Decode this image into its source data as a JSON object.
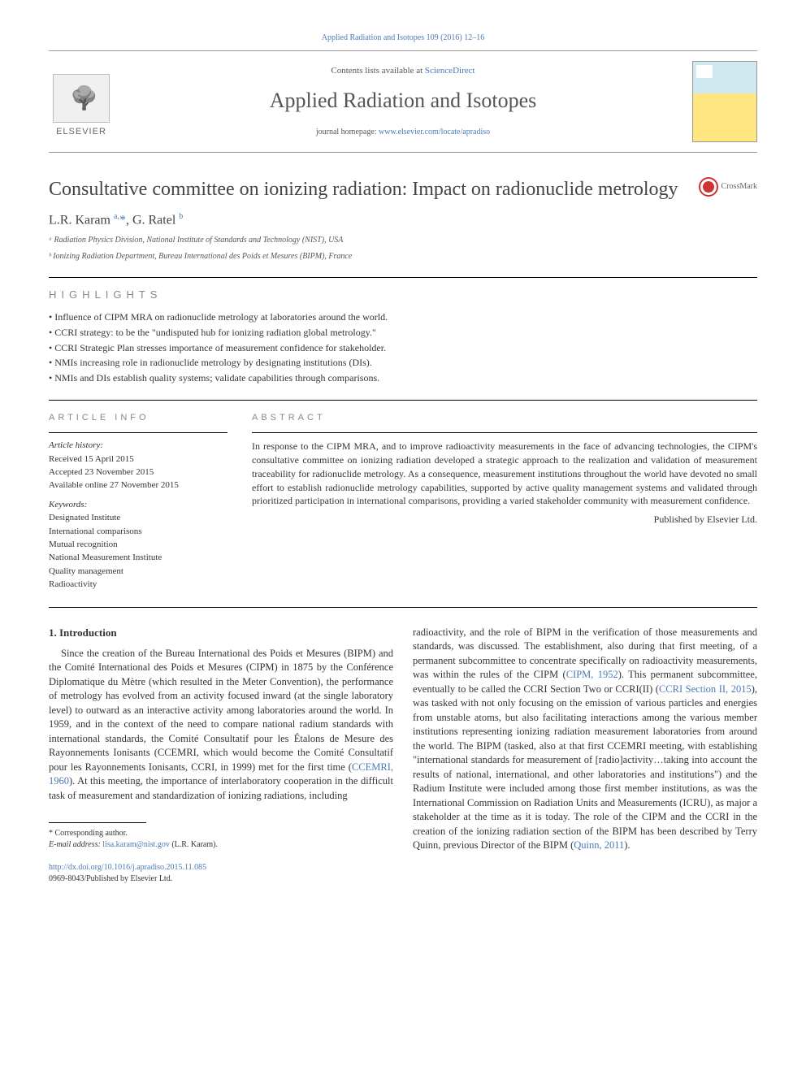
{
  "top_link": "Applied Radiation and Isotopes 109 (2016) 12–16",
  "header": {
    "contents_prefix": "Contents lists available at ",
    "contents_link": "ScienceDirect",
    "journal_name": "Applied Radiation and Isotopes",
    "homepage_prefix": "journal homepage: ",
    "homepage_link": "www.elsevier.com/locate/apradiso",
    "elsevier": "ELSEVIER"
  },
  "crossmark": "CrossMark",
  "article": {
    "title": "Consultative committee on ionizing radiation: Impact on radionuclide metrology",
    "authors_html": "L.R. Karam <sup>a,</sup><span class=\"corr\">*</span>, G. Ratel <sup>b</sup>",
    "affiliations": [
      "ᵃ Radiation Physics Division, National Institute of Standards and Technology (NIST), USA",
      "ᵇ Ionizing Radiation Department, Bureau International des Poids et Mesures (BIPM), France"
    ]
  },
  "highlights": {
    "heading": "HIGHLIGHTS",
    "items": [
      "Influence of CIPM MRA on radionuclide metrology at laboratories around the world.",
      "CCRI strategy: to be the \"undisputed hub for ionizing radiation global metrology.\"",
      "CCRI Strategic Plan stresses importance of measurement confidence for stakeholder.",
      "NMIs increasing role in radionuclide metrology by designating institutions (DIs).",
      "NMIs and DIs establish quality systems; validate capabilities through comparisons."
    ]
  },
  "info": {
    "heading": "ARTICLE INFO",
    "history_label": "Article history:",
    "history": [
      "Received 15 April 2015",
      "Accepted 23 November 2015",
      "Available online 27 November 2015"
    ],
    "keywords_label": "Keywords:",
    "keywords": [
      "Designated Institute",
      "International comparisons",
      "Mutual recognition",
      "National Measurement Institute",
      "Quality management",
      "Radioactivity"
    ]
  },
  "abstract": {
    "heading": "ABSTRACT",
    "text": "In response to the CIPM MRA, and to improve radioactivity measurements in the face of advancing technologies, the CIPM's consultative committee on ionizing radiation developed a strategic approach to the realization and validation of measurement traceability for radionuclide metrology. As a consequence, measurement institutions throughout the world have devoted no small effort to establish radionuclide metrology capabilities, supported by active quality management systems and validated through prioritized participation in international comparisons, providing a varied stakeholder community with measurement confidence.",
    "publisher": "Published by Elsevier Ltd."
  },
  "intro": {
    "heading": "1.  Introduction",
    "col1_parts": [
      "Since the creation of the Bureau International des Poids et Mesures (BIPM) and the Comité International des Poids et Mesures (CIPM) in 1875 by the Conférence Diplomatique du Mètre (which resulted in the Meter Convention), the performance of metrology has evolved from an activity focused inward (at the single laboratory level) to outward as an interactive activity among laboratories around the world. In 1959, and in the context of the need to compare national radium standards with international standards, the Comité Consultatif pour les Étalons de Mesure des Rayonnements Ionisants (CCEMRI, which would become the Comité Consultatif pour les Rayonnements Ionisants, CCRI, in 1999) met for the first time (",
      "CCEMRI, 1960",
      "). At this meeting, the importance of interlaboratory cooperation in the difficult task of measurement and standardization of ionizing radiations, including"
    ],
    "col2_parts": [
      "radioactivity, and the role of BIPM in the verification of those measurements and standards, was discussed. The establishment, also during that first meeting, of a permanent subcommittee to concentrate specifically on radioactivity measurements, was within the rules of the CIPM (",
      "CIPM, 1952",
      "). This permanent subcommittee, eventually to be called the CCRI Section Two or CCRI(II) (",
      "CCRI Section II, 2015",
      "), was tasked with not only focusing on the emission of various particles and energies from unstable atoms, but also facilitating interactions among the various member institutions representing ionizing radiation measurement laboratories from around the world. The BIPM (tasked, also at that first CCEMRI meeting, with establishing \"international standards for measurement of [radio]activity…taking into account the results of national, international, and other laboratories and institutions\") and the Radium Institute were included among those first member institutions, as was the International Commission on Radiation Units and Measurements (ICRU), as major a stakeholder at the time as it is today. The role of the CIPM and the CCRI in the creation of the ionizing radiation section of the BIPM has been described by Terry Quinn, previous Director of the BIPM (",
      "Quinn, 2011",
      ")."
    ]
  },
  "footnote": {
    "corr": "* Corresponding author.",
    "email_label": "E-mail address: ",
    "email": "lisa.karam@nist.gov",
    "email_name": " (L.R. Karam)."
  },
  "doi": {
    "link": "http://dx.doi.org/10.1016/j.apradiso.2015.11.085",
    "issn": "0969-8043/Published by Elsevier Ltd."
  }
}
